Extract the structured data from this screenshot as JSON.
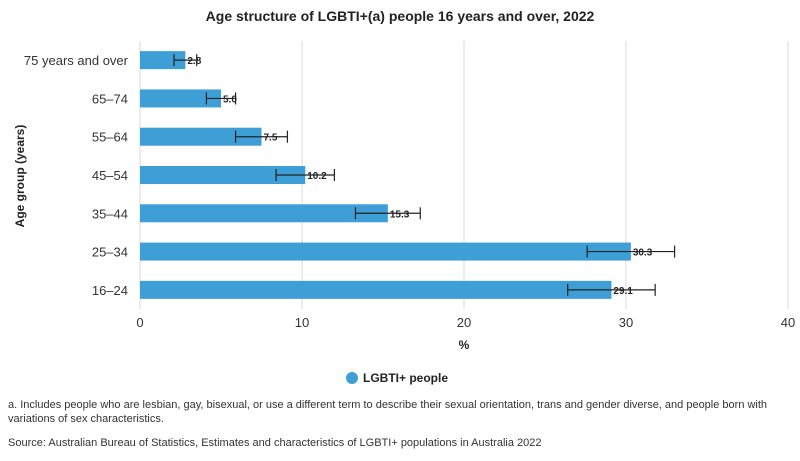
{
  "chart_data": {
    "type": "bar",
    "orientation": "horizontal",
    "title": "Age structure of LGBTI+(a) people 16 years and over, 2022",
    "xlabel": "%",
    "ylabel": "Age group (years)",
    "xlim": [
      0,
      40
    ],
    "xticks": [
      0,
      10,
      20,
      30,
      40
    ],
    "grid": true,
    "legend_position": "bottom",
    "categories": [
      "75 years and over",
      "65–74",
      "55–64",
      "45–54",
      "35–44",
      "25–34",
      "16–24"
    ],
    "series": [
      {
        "name": "LGBTI+ people",
        "color": "#3d9fd6",
        "values": [
          2.8,
          5.0,
          7.5,
          10.2,
          15.3,
          30.3,
          29.1
        ],
        "value_labels": [
          "2.8",
          "5.0",
          "7.5",
          "10.2",
          "15.3",
          "30.3",
          "29.1"
        ],
        "error_low": [
          2.1,
          4.1,
          5.9,
          8.4,
          13.3,
          27.6,
          26.4
        ],
        "error_high": [
          3.5,
          5.9,
          9.1,
          12.0,
          17.3,
          33.0,
          31.8
        ]
      }
    ]
  },
  "footnotes": {
    "note_a": "a. Includes people who are lesbian, gay, bisexual, or use a different term to describe their sexual orientation, trans and gender diverse, and people born with variations of sex characteristics.",
    "source": "Source: Australian Bureau of Statistics, Estimates and characteristics of LGBTI+ populations in Australia 2022"
  }
}
